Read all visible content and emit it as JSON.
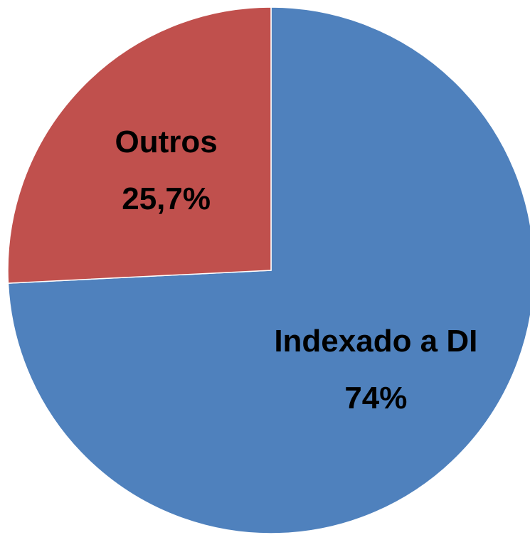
{
  "chart_data": {
    "type": "pie",
    "categories": [
      "Indexado a DI",
      "Outros"
    ],
    "values": [
      74,
      25.7
    ],
    "value_labels": [
      "74%",
      "25,7%"
    ],
    "colors": [
      "#4f81bd",
      "#c0504d"
    ]
  }
}
